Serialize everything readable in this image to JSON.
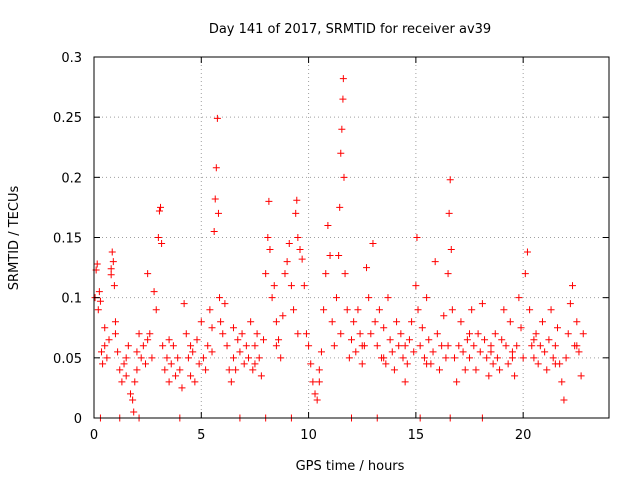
{
  "chart_data": {
    "type": "scatter",
    "title": "Day 141 of 2017, SRMTID for receiver av39",
    "xlabel": "GPS time / hours",
    "ylabel": "SRMTID / TECUs",
    "xlim": [
      0,
      24
    ],
    "ylim": [
      0,
      0.3
    ],
    "xticks": [
      0,
      5,
      10,
      15,
      20
    ],
    "xtick_labels": [
      "0",
      "5",
      "10",
      "15",
      "20"
    ],
    "yticks": [
      0,
      0.05,
      0.1,
      0.15,
      0.2,
      0.25,
      0.3
    ],
    "ytick_labels": [
      "0",
      "0.05",
      "0.1",
      "0.15",
      "0.2",
      "0.25",
      "0.3"
    ],
    "grid": true,
    "marker": "+",
    "series": [
      {
        "name": "SRMTID",
        "color": "#ff0000",
        "points": [
          [
            0.05,
            0.1
          ],
          [
            0.1,
            0.123
          ],
          [
            0.15,
            0.128
          ],
          [
            0.2,
            0.09
          ],
          [
            0.25,
            0.105
          ],
          [
            0.3,
            0.097
          ],
          [
            0.35,
            0.055
          ],
          [
            0.4,
            0.045
          ],
          [
            0.5,
            0.06
          ],
          [
            0.6,
            0.05
          ],
          [
            0.7,
            0.065
          ],
          [
            0.8,
            0.119
          ],
          [
            0.8,
            0.124
          ],
          [
            0.85,
            0.138
          ],
          [
            0.9,
            0.13
          ],
          [
            0.95,
            0.11
          ],
          [
            1.0,
            0.07
          ],
          [
            1.1,
            0.055
          ],
          [
            1.2,
            0.04
          ],
          [
            1.3,
            0.03
          ],
          [
            1.4,
            0.045
          ],
          [
            1.5,
            0.035
          ],
          [
            1.6,
            0.06
          ],
          [
            1.7,
            0.02
          ],
          [
            1.8,
            0.015
          ],
          [
            1.85,
            0.005
          ],
          [
            1.9,
            0.03
          ],
          [
            2.0,
            0.055
          ],
          [
            2.1,
            0.07
          ],
          [
            2.2,
            0.05
          ],
          [
            2.3,
            0.06
          ],
          [
            2.4,
            0.045
          ],
          [
            2.5,
            0.12
          ],
          [
            2.6,
            0.07
          ],
          [
            2.7,
            0.05
          ],
          [
            2.8,
            0.105
          ],
          [
            2.9,
            0.09
          ],
          [
            3.0,
            0.15
          ],
          [
            3.05,
            0.172
          ],
          [
            3.1,
            0.175
          ],
          [
            3.15,
            0.145
          ],
          [
            3.2,
            0.06
          ],
          [
            3.3,
            0.04
          ],
          [
            3.4,
            0.05
          ],
          [
            3.5,
            0.03
          ],
          [
            3.6,
            0.045
          ],
          [
            3.7,
            0.06
          ],
          [
            3.8,
            0.035
          ],
          [
            3.9,
            0.05
          ],
          [
            4.0,
            0.04
          ],
          [
            4.1,
            0.025
          ],
          [
            4.2,
            0.095
          ],
          [
            4.3,
            0.07
          ],
          [
            4.4,
            0.05
          ],
          [
            4.5,
            0.035
          ],
          [
            4.6,
            0.055
          ],
          [
            4.7,
            0.03
          ],
          [
            4.8,
            0.065
          ],
          [
            4.9,
            0.045
          ],
          [
            5.0,
            0.08
          ],
          [
            5.1,
            0.05
          ],
          [
            5.2,
            0.04
          ],
          [
            5.3,
            0.06
          ],
          [
            5.4,
            0.09
          ],
          [
            5.5,
            0.075
          ],
          [
            5.6,
            0.155
          ],
          [
            5.65,
            0.182
          ],
          [
            5.7,
            0.208
          ],
          [
            5.75,
            0.249
          ],
          [
            5.8,
            0.17
          ],
          [
            5.85,
            0.1
          ],
          [
            5.9,
            0.08
          ],
          [
            6.0,
            0.07
          ],
          [
            6.1,
            0.095
          ],
          [
            6.2,
            0.06
          ],
          [
            6.3,
            0.04
          ],
          [
            6.4,
            0.03
          ],
          [
            6.5,
            0.05
          ],
          [
            6.6,
            0.04
          ],
          [
            6.7,
            0.065
          ],
          [
            6.8,
            0.055
          ],
          [
            6.9,
            0.07
          ],
          [
            7.0,
            0.045
          ],
          [
            7.1,
            0.06
          ],
          [
            7.2,
            0.05
          ],
          [
            7.3,
            0.08
          ],
          [
            7.4,
            0.04
          ],
          [
            7.5,
            0.06
          ],
          [
            7.6,
            0.07
          ],
          [
            7.7,
            0.05
          ],
          [
            7.8,
            0.035
          ],
          [
            7.9,
            0.065
          ],
          [
            8.0,
            0.12
          ],
          [
            8.1,
            0.15
          ],
          [
            8.15,
            0.18
          ],
          [
            8.2,
            0.14
          ],
          [
            8.3,
            0.1
          ],
          [
            8.4,
            0.11
          ],
          [
            8.5,
            0.08
          ],
          [
            8.6,
            0.065
          ],
          [
            8.7,
            0.05
          ],
          [
            8.8,
            0.085
          ],
          [
            8.9,
            0.12
          ],
          [
            9.0,
            0.13
          ],
          [
            9.1,
            0.145
          ],
          [
            9.2,
            0.11
          ],
          [
            9.3,
            0.09
          ],
          [
            9.4,
            0.17
          ],
          [
            9.45,
            0.181
          ],
          [
            9.5,
            0.15
          ],
          [
            9.6,
            0.14
          ],
          [
            9.7,
            0.132
          ],
          [
            9.8,
            0.11
          ],
          [
            9.9,
            0.07
          ],
          [
            10.0,
            0.06
          ],
          [
            10.1,
            0.045
          ],
          [
            10.2,
            0.03
          ],
          [
            10.3,
            0.02
          ],
          [
            10.4,
            0.015
          ],
          [
            10.5,
            0.04
          ],
          [
            10.6,
            0.055
          ],
          [
            10.7,
            0.09
          ],
          [
            10.8,
            0.12
          ],
          [
            10.9,
            0.16
          ],
          [
            11.0,
            0.135
          ],
          [
            11.1,
            0.08
          ],
          [
            11.2,
            0.06
          ],
          [
            11.3,
            0.1
          ],
          [
            11.4,
            0.135
          ],
          [
            11.45,
            0.175
          ],
          [
            11.5,
            0.22
          ],
          [
            11.55,
            0.24
          ],
          [
            11.6,
            0.265
          ],
          [
            11.62,
            0.282
          ],
          [
            11.65,
            0.2
          ],
          [
            11.7,
            0.12
          ],
          [
            11.8,
            0.09
          ],
          [
            11.9,
            0.05
          ],
          [
            12.0,
            0.065
          ],
          [
            12.1,
            0.08
          ],
          [
            12.2,
            0.055
          ],
          [
            12.3,
            0.09
          ],
          [
            12.4,
            0.07
          ],
          [
            12.5,
            0.045
          ],
          [
            12.6,
            0.06
          ],
          [
            12.7,
            0.125
          ],
          [
            12.8,
            0.1
          ],
          [
            12.9,
            0.07
          ],
          [
            13.0,
            0.145
          ],
          [
            13.1,
            0.08
          ],
          [
            13.2,
            0.06
          ],
          [
            13.3,
            0.09
          ],
          [
            13.4,
            0.05
          ],
          [
            13.5,
            0.075
          ],
          [
            13.6,
            0.045
          ],
          [
            13.7,
            0.1
          ],
          [
            13.8,
            0.065
          ],
          [
            13.9,
            0.055
          ],
          [
            14.0,
            0.04
          ],
          [
            14.1,
            0.08
          ],
          [
            14.2,
            0.06
          ],
          [
            14.3,
            0.07
          ],
          [
            14.4,
            0.05
          ],
          [
            14.5,
            0.03
          ],
          [
            14.6,
            0.045
          ],
          [
            14.7,
            0.065
          ],
          [
            14.8,
            0.08
          ],
          [
            14.9,
            0.055
          ],
          [
            15.0,
            0.11
          ],
          [
            15.05,
            0.15
          ],
          [
            15.1,
            0.09
          ],
          [
            15.2,
            0.06
          ],
          [
            15.3,
            0.075
          ],
          [
            15.4,
            0.05
          ],
          [
            15.5,
            0.1
          ],
          [
            15.6,
            0.065
          ],
          [
            15.7,
            0.045
          ],
          [
            15.8,
            0.055
          ],
          [
            15.9,
            0.13
          ],
          [
            16.0,
            0.07
          ],
          [
            16.1,
            0.04
          ],
          [
            16.2,
            0.06
          ],
          [
            16.3,
            0.085
          ],
          [
            16.4,
            0.05
          ],
          [
            16.5,
            0.12
          ],
          [
            16.55,
            0.17
          ],
          [
            16.6,
            0.198
          ],
          [
            16.65,
            0.14
          ],
          [
            16.7,
            0.09
          ],
          [
            16.8,
            0.05
          ],
          [
            16.9,
            0.03
          ],
          [
            17.0,
            0.06
          ],
          [
            17.1,
            0.08
          ],
          [
            17.2,
            0.055
          ],
          [
            17.3,
            0.04
          ],
          [
            17.4,
            0.065
          ],
          [
            17.5,
            0.05
          ],
          [
            17.6,
            0.09
          ],
          [
            17.7,
            0.06
          ],
          [
            17.8,
            0.04
          ],
          [
            17.9,
            0.07
          ],
          [
            18.0,
            0.055
          ],
          [
            18.1,
            0.095
          ],
          [
            18.2,
            0.065
          ],
          [
            18.3,
            0.05
          ],
          [
            18.4,
            0.035
          ],
          [
            18.5,
            0.06
          ],
          [
            18.6,
            0.045
          ],
          [
            18.7,
            0.07
          ],
          [
            18.8,
            0.05
          ],
          [
            18.9,
            0.04
          ],
          [
            19.0,
            0.065
          ],
          [
            19.1,
            0.09
          ],
          [
            19.2,
            0.06
          ],
          [
            19.3,
            0.045
          ],
          [
            19.4,
            0.08
          ],
          [
            19.5,
            0.055
          ],
          [
            19.6,
            0.035
          ],
          [
            19.7,
            0.06
          ],
          [
            19.8,
            0.1
          ],
          [
            19.9,
            0.075
          ],
          [
            20.0,
            0.05
          ],
          [
            20.1,
            0.12
          ],
          [
            20.2,
            0.138
          ],
          [
            20.3,
            0.09
          ],
          [
            20.4,
            0.06
          ],
          [
            20.5,
            0.05
          ],
          [
            20.6,
            0.07
          ],
          [
            20.7,
            0.045
          ],
          [
            20.8,
            0.06
          ],
          [
            20.9,
            0.08
          ],
          [
            21.0,
            0.055
          ],
          [
            21.1,
            0.04
          ],
          [
            21.2,
            0.065
          ],
          [
            21.3,
            0.09
          ],
          [
            21.4,
            0.05
          ],
          [
            21.5,
            0.06
          ],
          [
            21.6,
            0.075
          ],
          [
            21.7,
            0.045
          ],
          [
            21.8,
            0.03
          ],
          [
            21.9,
            0.015
          ],
          [
            22.0,
            0.05
          ],
          [
            22.1,
            0.07
          ],
          [
            22.2,
            0.095
          ],
          [
            22.3,
            0.11
          ],
          [
            22.4,
            0.06
          ],
          [
            22.5,
            0.08
          ],
          [
            22.6,
            0.055
          ],
          [
            22.7,
            0.035
          ],
          [
            22.8,
            0.07
          ],
          [
            0.3,
            0.0
          ],
          [
            1.2,
            0.0
          ],
          [
            2.1,
            0.0
          ],
          [
            4.0,
            0.0
          ],
          [
            6.8,
            0.0
          ],
          [
            8.0,
            0.0
          ],
          [
            9.2,
            0.0
          ],
          [
            12.0,
            0.0
          ],
          [
            13.2,
            0.0
          ],
          [
            15.2,
            0.0
          ],
          [
            16.6,
            0.0
          ],
          [
            18.1,
            0.0
          ],
          [
            0.5,
            0.075
          ],
          [
            1.0,
            0.08
          ],
          [
            1.5,
            0.05
          ],
          [
            2.0,
            0.04
          ],
          [
            2.5,
            0.065
          ],
          [
            3.5,
            0.065
          ],
          [
            4.5,
            0.06
          ],
          [
            5.5,
            0.055
          ],
          [
            6.5,
            0.075
          ],
          [
            7.5,
            0.045
          ],
          [
            8.5,
            0.06
          ],
          [
            9.5,
            0.07
          ],
          [
            10.5,
            0.03
          ],
          [
            11.5,
            0.07
          ],
          [
            12.5,
            0.06
          ],
          [
            13.5,
            0.05
          ],
          [
            14.5,
            0.06
          ],
          [
            15.5,
            0.045
          ],
          [
            16.5,
            0.06
          ],
          [
            17.5,
            0.07
          ],
          [
            18.5,
            0.055
          ],
          [
            19.5,
            0.05
          ],
          [
            20.5,
            0.065
          ],
          [
            21.5,
            0.045
          ],
          [
            22.5,
            0.06
          ]
        ]
      }
    ]
  }
}
